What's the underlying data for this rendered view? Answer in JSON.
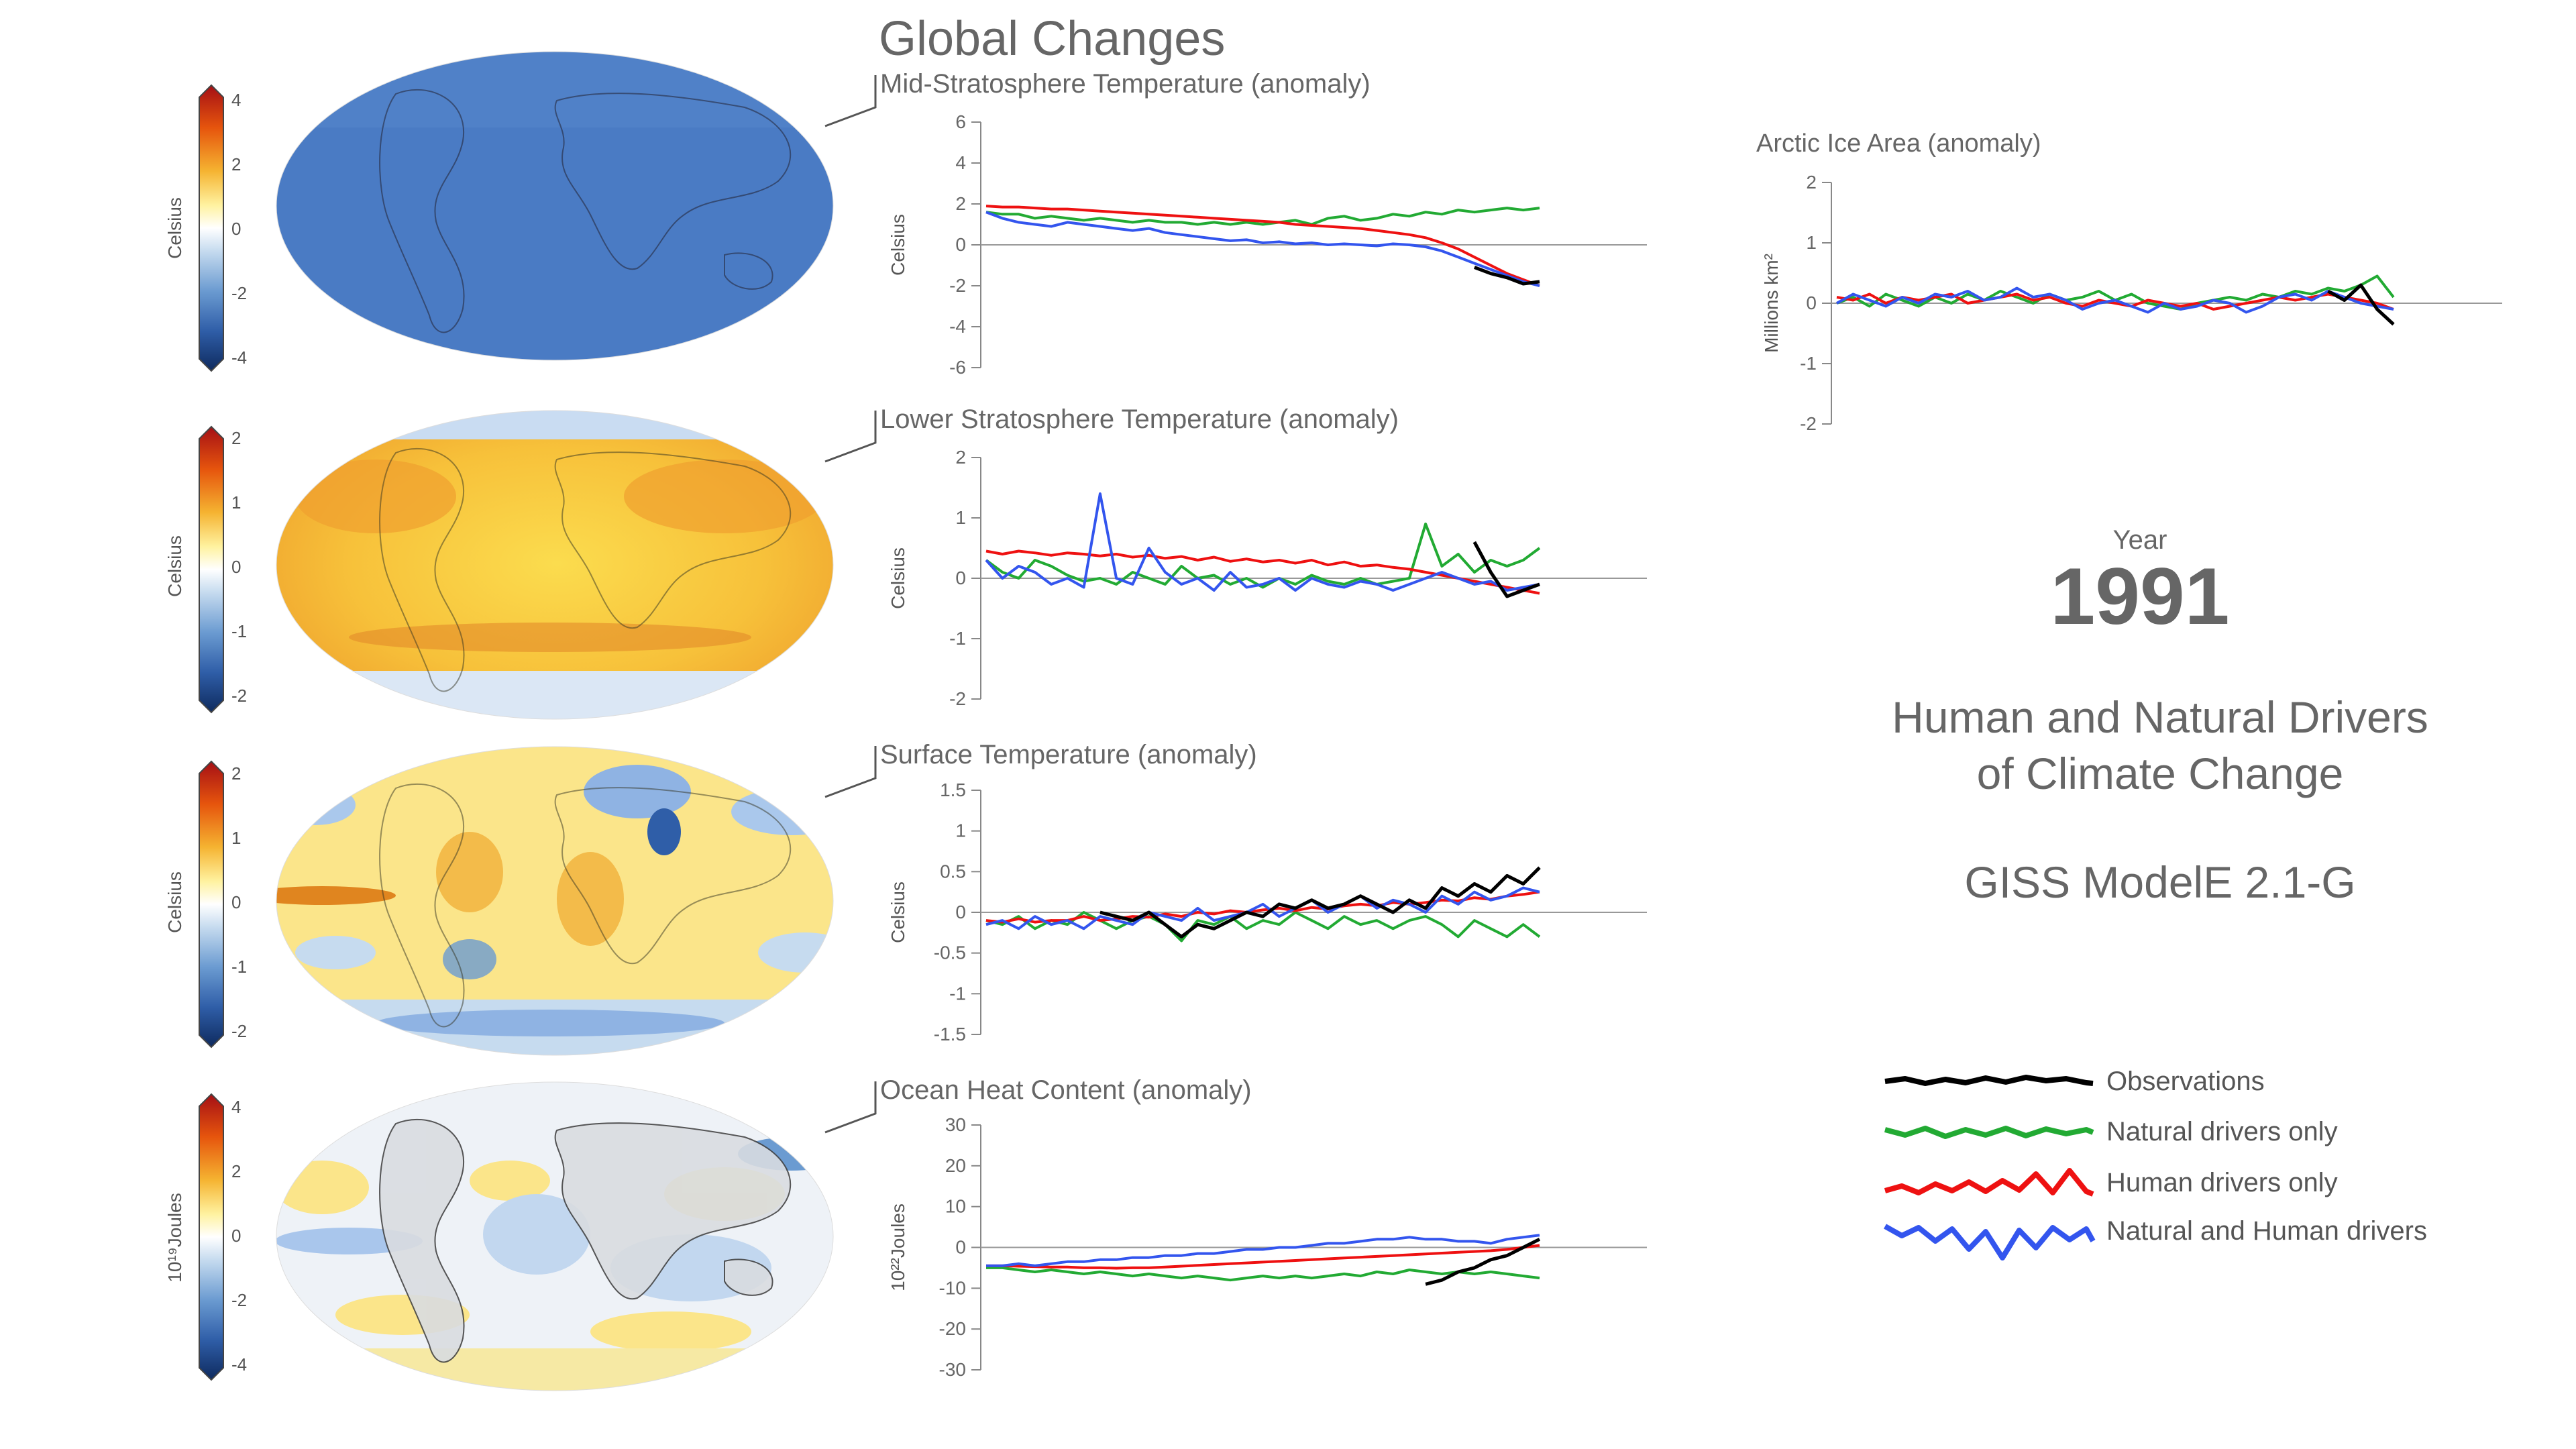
{
  "header": {
    "title": "Global Changes"
  },
  "info": {
    "year_label": "Year",
    "year": "1991",
    "subtitle_line1": "Human and Natural Drivers",
    "subtitle_line2": "of Climate Change",
    "model": "GISS ModelE 2.1-G"
  },
  "legend": {
    "items": [
      {
        "label": "Observations",
        "color": "#000000"
      },
      {
        "label": "Natural drivers only",
        "color": "#22aa33"
      },
      {
        "label": "Human drivers only",
        "color": "#ee1111"
      },
      {
        "label": "Natural and Human drivers",
        "color": "#3355ee"
      }
    ]
  },
  "colors": {
    "observations": "#000000",
    "natural": "#22aa33",
    "human": "#ee1111",
    "both": "#3355ee",
    "text": "#666666",
    "axis": "#888888"
  },
  "maps": [
    {
      "colorbar_label": "Celsius",
      "ticks": [
        "4",
        "2",
        "0",
        "-2",
        "-4"
      ],
      "pattern": "cold"
    },
    {
      "colorbar_label": "Celsius",
      "ticks": [
        "2",
        "1",
        "0",
        "-1",
        "-2"
      ],
      "pattern": "warm"
    },
    {
      "colorbar_label": "Celsius",
      "ticks": [
        "2",
        "1",
        "0",
        "-1",
        "-2"
      ],
      "pattern": "mixed"
    },
    {
      "colorbar_label": "10¹⁹Joules",
      "ticks": [
        "4",
        "2",
        "0",
        "-2",
        "-4"
      ],
      "pattern": "ocean"
    }
  ],
  "chart_data": [
    {
      "type": "line",
      "title": "Mid-Stratosphere Temperature (anomaly)",
      "ylabel": "Celsius",
      "ylim": [
        -6,
        6
      ],
      "yticks": [
        "6",
        "4",
        "2",
        "0",
        "-2",
        "-4",
        "-6"
      ],
      "series": [
        {
          "name": "Natural drivers only",
          "values": [
            1.6,
            1.5,
            1.5,
            1.3,
            1.4,
            1.3,
            1.2,
            1.3,
            1.2,
            1.1,
            1.2,
            1.1,
            1.1,
            1.0,
            1.1,
            1.0,
            1.1,
            1.0,
            1.1,
            1.2,
            1.0,
            1.3,
            1.4,
            1.2,
            1.3,
            1.5,
            1.4,
            1.6,
            1.5,
            1.7,
            1.6,
            1.7,
            1.8,
            1.7,
            1.8
          ]
        },
        {
          "name": "Human drivers only",
          "values": [
            1.9,
            1.85,
            1.85,
            1.8,
            1.75,
            1.75,
            1.7,
            1.65,
            1.6,
            1.55,
            1.5,
            1.45,
            1.4,
            1.35,
            1.3,
            1.25,
            1.2,
            1.15,
            1.1,
            1.0,
            0.95,
            0.9,
            0.85,
            0.8,
            0.7,
            0.6,
            0.5,
            0.35,
            0.1,
            -0.2,
            -0.6,
            -1.0,
            -1.4,
            -1.7,
            -2.0
          ]
        },
        {
          "name": "Natural and Human drivers",
          "values": [
            1.6,
            1.3,
            1.1,
            1.0,
            0.9,
            1.1,
            1.0,
            0.9,
            0.8,
            0.7,
            0.8,
            0.6,
            0.5,
            0.4,
            0.3,
            0.2,
            0.25,
            0.1,
            0.15,
            0.05,
            0.1,
            0.0,
            0.05,
            0.0,
            -0.05,
            0.05,
            0.0,
            -0.1,
            -0.3,
            -0.6,
            -0.9,
            -1.2,
            -1.5,
            -1.8,
            -2.0
          ]
        },
        {
          "name": "Observations",
          "values": [
            null,
            null,
            null,
            null,
            null,
            null,
            null,
            null,
            null,
            null,
            null,
            null,
            null,
            null,
            null,
            null,
            null,
            null,
            null,
            null,
            null,
            null,
            null,
            null,
            null,
            null,
            null,
            null,
            null,
            null,
            -1.1,
            -1.4,
            -1.6,
            -1.9,
            -1.8
          ]
        }
      ]
    },
    {
      "type": "line",
      "title": "Lower Stratosphere Temperature (anomaly)",
      "ylabel": "Celsius",
      "ylim": [
        -2,
        2
      ],
      "yticks": [
        "2",
        "1",
        "0",
        "-1",
        "-2"
      ],
      "series": [
        {
          "name": "Natural drivers only",
          "values": [
            0.3,
            0.1,
            0.0,
            0.3,
            0.2,
            0.05,
            -0.05,
            0.0,
            -0.1,
            0.1,
            0.0,
            -0.1,
            0.2,
            0.0,
            0.05,
            -0.1,
            0.0,
            -0.15,
            0.0,
            -0.1,
            0.05,
            -0.05,
            -0.1,
            0.0,
            -0.1,
            -0.05,
            0.0,
            0.9,
            0.2,
            0.4,
            0.1,
            0.3,
            0.2,
            0.3,
            0.5
          ]
        },
        {
          "name": "Human drivers only",
          "values": [
            0.45,
            0.4,
            0.45,
            0.42,
            0.38,
            0.42,
            0.4,
            0.37,
            0.4,
            0.35,
            0.38,
            0.33,
            0.36,
            0.3,
            0.35,
            0.28,
            0.32,
            0.27,
            0.3,
            0.25,
            0.3,
            0.22,
            0.27,
            0.2,
            0.22,
            0.18,
            0.15,
            0.1,
            0.05,
            0.0,
            -0.05,
            -0.1,
            -0.15,
            -0.2,
            -0.25
          ]
        },
        {
          "name": "Natural and Human drivers",
          "values": [
            0.3,
            0.0,
            0.2,
            0.1,
            -0.1,
            0.0,
            -0.15,
            1.4,
            0.0,
            -0.1,
            0.5,
            0.1,
            -0.1,
            0.0,
            -0.2,
            0.1,
            -0.15,
            -0.1,
            0.0,
            -0.2,
            0.0,
            -0.1,
            -0.15,
            -0.05,
            -0.1,
            -0.2,
            -0.1,
            0.0,
            0.1,
            0.0,
            -0.1,
            -0.05,
            -0.2,
            -0.15,
            -0.1
          ]
        },
        {
          "name": "Observations",
          "values": [
            null,
            null,
            null,
            null,
            null,
            null,
            null,
            null,
            null,
            null,
            null,
            null,
            null,
            null,
            null,
            null,
            null,
            null,
            null,
            null,
            null,
            null,
            null,
            null,
            null,
            null,
            null,
            null,
            null,
            null,
            0.6,
            0.1,
            -0.3,
            -0.2,
            -0.1
          ]
        }
      ]
    },
    {
      "type": "line",
      "title": "Surface Temperature (anomaly)",
      "ylabel": "Celsius",
      "ylim": [
        -1.5,
        1.5
      ],
      "yticks": [
        "1.5",
        "1",
        "0.5",
        "0",
        "-0.5",
        "-1",
        "-1.5"
      ],
      "series": [
        {
          "name": "Natural drivers only",
          "values": [
            -0.1,
            -0.15,
            -0.05,
            -0.2,
            -0.1,
            -0.15,
            0.0,
            -0.1,
            -0.2,
            -0.1,
            -0.05,
            -0.15,
            -0.35,
            -0.1,
            -0.15,
            -0.05,
            -0.2,
            -0.1,
            -0.15,
            0.0,
            -0.1,
            -0.2,
            -0.05,
            -0.15,
            -0.1,
            -0.2,
            -0.1,
            -0.05,
            -0.15,
            -0.3,
            -0.1,
            -0.2,
            -0.3,
            -0.15,
            -0.3
          ]
        },
        {
          "name": "Human drivers only",
          "values": [
            -0.1,
            -0.12,
            -0.08,
            -0.12,
            -0.1,
            -0.1,
            -0.05,
            -0.1,
            -0.08,
            -0.05,
            -0.06,
            -0.02,
            -0.05,
            0.0,
            -0.02,
            0.02,
            0.0,
            0.03,
            0.05,
            0.02,
            0.06,
            0.04,
            0.08,
            0.1,
            0.08,
            0.12,
            0.1,
            0.12,
            0.15,
            0.14,
            0.18,
            0.16,
            0.2,
            0.22,
            0.25
          ]
        },
        {
          "name": "Natural and Human drivers",
          "values": [
            -0.15,
            -0.1,
            -0.2,
            -0.05,
            -0.15,
            -0.1,
            -0.2,
            -0.05,
            -0.1,
            -0.15,
            0.0,
            -0.05,
            -0.1,
            0.05,
            -0.1,
            -0.05,
            0.0,
            0.1,
            -0.05,
            0.05,
            0.15,
            0.0,
            0.1,
            0.2,
            0.05,
            0.15,
            0.1,
            0.0,
            0.2,
            0.1,
            0.25,
            0.15,
            0.2,
            0.3,
            0.25
          ]
        },
        {
          "name": "Observations",
          "values": [
            null,
            null,
            null,
            null,
            null,
            null,
            null,
            0.0,
            -0.05,
            -0.1,
            0.0,
            -0.15,
            -0.3,
            -0.15,
            -0.2,
            -0.1,
            0.0,
            -0.05,
            0.1,
            0.05,
            0.15,
            0.05,
            0.1,
            0.2,
            0.1,
            0.0,
            0.15,
            0.05,
            0.3,
            0.2,
            0.35,
            0.25,
            0.45,
            0.35,
            0.55
          ]
        }
      ]
    },
    {
      "type": "line",
      "title": "Ocean Heat Content (anomaly)",
      "ylabel": "10²²Joules",
      "ylim": [
        -30,
        30
      ],
      "yticks": [
        "30",
        "20",
        "10",
        "0",
        "-10",
        "-20",
        "-30"
      ],
      "series": [
        {
          "name": "Natural drivers only",
          "values": [
            -5,
            -5,
            -5.5,
            -6,
            -5.5,
            -6,
            -6.5,
            -6,
            -6.5,
            -7,
            -6.5,
            -7,
            -7.5,
            -7,
            -7.5,
            -8,
            -7.5,
            -7,
            -7.5,
            -7,
            -7.5,
            -7,
            -6.5,
            -7,
            -6,
            -6.5,
            -5.5,
            -6,
            -6.5,
            -6,
            -6.5,
            -6,
            -6.5,
            -7,
            -7.5
          ]
        },
        {
          "name": "Human drivers only",
          "values": [
            -4.5,
            -4.5,
            -4.6,
            -4.7,
            -4.8,
            -4.8,
            -5.0,
            -5.0,
            -5.1,
            -5.0,
            -5.0,
            -4.8,
            -4.6,
            -4.4,
            -4.2,
            -4.0,
            -3.8,
            -3.6,
            -3.4,
            -3.2,
            -3.0,
            -2.8,
            -2.6,
            -2.4,
            -2.2,
            -2.0,
            -1.8,
            -1.6,
            -1.4,
            -1.2,
            -1.0,
            -0.8,
            -0.5,
            0.0,
            0.5
          ]
        },
        {
          "name": "Natural and Human drivers",
          "values": [
            -4.5,
            -4.5,
            -4,
            -4.5,
            -4,
            -3.5,
            -3.5,
            -3,
            -3,
            -2.5,
            -2.5,
            -2,
            -2,
            -1.5,
            -1.5,
            -1,
            -0.5,
            -0.5,
            0,
            0,
            0.5,
            1,
            1,
            1.5,
            2,
            2,
            2.5,
            2,
            2,
            1.5,
            1.5,
            1,
            2,
            2.5,
            3
          ]
        },
        {
          "name": "Observations",
          "values": [
            null,
            null,
            null,
            null,
            null,
            null,
            null,
            null,
            null,
            null,
            null,
            null,
            null,
            null,
            null,
            null,
            null,
            null,
            null,
            null,
            null,
            null,
            null,
            null,
            null,
            null,
            null,
            -9,
            -8,
            -6,
            -5,
            -3,
            -2,
            0,
            2
          ]
        }
      ]
    },
    {
      "type": "line",
      "title": "Arctic Ice Area (anomaly)",
      "ylabel": "Millions km²",
      "ylim": [
        -2,
        2
      ],
      "yticks": [
        "2",
        "1",
        "0",
        "-1",
        "-2"
      ],
      "series": [
        {
          "name": "Natural drivers only",
          "values": [
            0.0,
            0.1,
            -0.05,
            0.15,
            0.05,
            -0.05,
            0.1,
            0.0,
            0.15,
            0.05,
            0.2,
            0.1,
            0.0,
            0.15,
            0.05,
            0.1,
            0.2,
            0.05,
            0.15,
            0.0,
            -0.05,
            -0.1,
            0.0,
            0.05,
            0.1,
            0.05,
            0.15,
            0.1,
            0.2,
            0.15,
            0.25,
            0.2,
            0.3,
            0.45,
            0.1
          ]
        },
        {
          "name": "Human drivers only",
          "values": [
            0.1,
            0.05,
            0.15,
            0.0,
            0.1,
            0.05,
            0.1,
            0.15,
            0.0,
            0.05,
            0.1,
            0.15,
            0.05,
            0.1,
            0.0,
            -0.05,
            0.05,
            0.0,
            -0.05,
            0.05,
            0.0,
            -0.05,
            0.0,
            -0.1,
            -0.05,
            0.0,
            0.05,
            0.1,
            0.05,
            0.1,
            0.15,
            0.1,
            0.05,
            0.0,
            -0.1
          ]
        },
        {
          "name": "Natural and Human drivers",
          "values": [
            0.0,
            0.15,
            0.05,
            -0.05,
            0.1,
            0.0,
            0.15,
            0.1,
            0.2,
            0.05,
            0.1,
            0.25,
            0.1,
            0.15,
            0.05,
            -0.1,
            0.0,
            0.05,
            -0.05,
            -0.15,
            0.0,
            -0.1,
            -0.05,
            0.05,
            0.0,
            -0.15,
            -0.05,
            0.1,
            0.15,
            0.05,
            0.2,
            0.1,
            0.0,
            -0.05,
            -0.1
          ]
        },
        {
          "name": "Observations",
          "values": [
            null,
            null,
            null,
            null,
            null,
            null,
            null,
            null,
            null,
            null,
            null,
            null,
            null,
            null,
            null,
            null,
            null,
            null,
            null,
            null,
            null,
            null,
            null,
            null,
            null,
            null,
            null,
            null,
            null,
            null,
            0.2,
            0.05,
            0.3,
            -0.1,
            -0.35
          ]
        }
      ]
    }
  ]
}
